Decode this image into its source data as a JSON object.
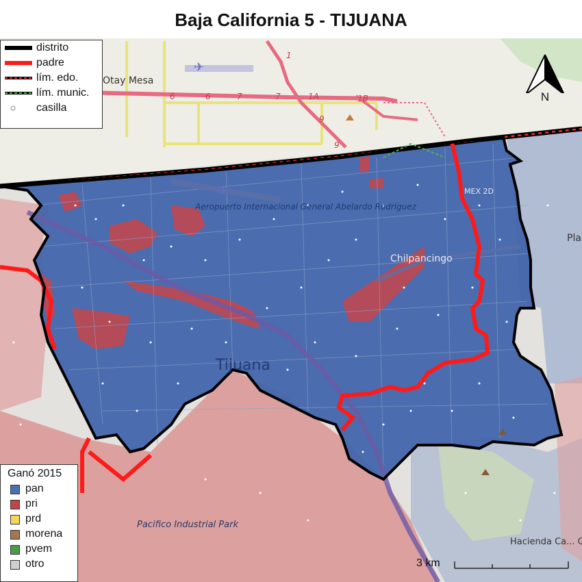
{
  "title": "Baja California 5 - TIJUANA",
  "map_labels": {
    "otay_mesa": "Otay Mesa",
    "airport": "Aeropuerto Internacional General Abelardo Rodríguez",
    "chilpancingo": "Chilpancingo",
    "tijuana": "Tijuana",
    "pacifico": "Pacifico Industrial Park",
    "hacienda": "Hacienda Ca... Grande",
    "mex": "MEX 2D",
    "pla": "Pla",
    "route_1": "1",
    "route_6": "6",
    "route_7": "7",
    "route_1a": "1A",
    "route_1b": "1B",
    "route_9": "9"
  },
  "legend_lines": [
    {
      "label": "distrito",
      "style": "thick-black"
    },
    {
      "label": "padre",
      "style": "thick-red"
    },
    {
      "label": "lím. edo.",
      "style": "red-black-dashed"
    },
    {
      "label": "lím. munic.",
      "style": "green-black-dashed"
    },
    {
      "label": "casilla",
      "style": "point"
    }
  ],
  "legend_parties": {
    "title": "Ganó 2015",
    "items": [
      {
        "label": "pan",
        "color": "#4a6fb5"
      },
      {
        "label": "pri",
        "color": "#c0454a"
      },
      {
        "label": "prd",
        "color": "#f2d75a"
      },
      {
        "label": "morena",
        "color": "#a5764f"
      },
      {
        "label": "pvem",
        "color": "#4a9a4a"
      },
      {
        "label": "otro",
        "color": "#cfcfcf"
      }
    ]
  },
  "north_label": "N",
  "scale_label": "3 km",
  "colors": {
    "pan_fill": "#3f63a8",
    "pri_fill": "#c0454a",
    "district_border": "#000000",
    "parent_border": "#ff1a1a",
    "basemap_bg": "#eef0ea"
  }
}
